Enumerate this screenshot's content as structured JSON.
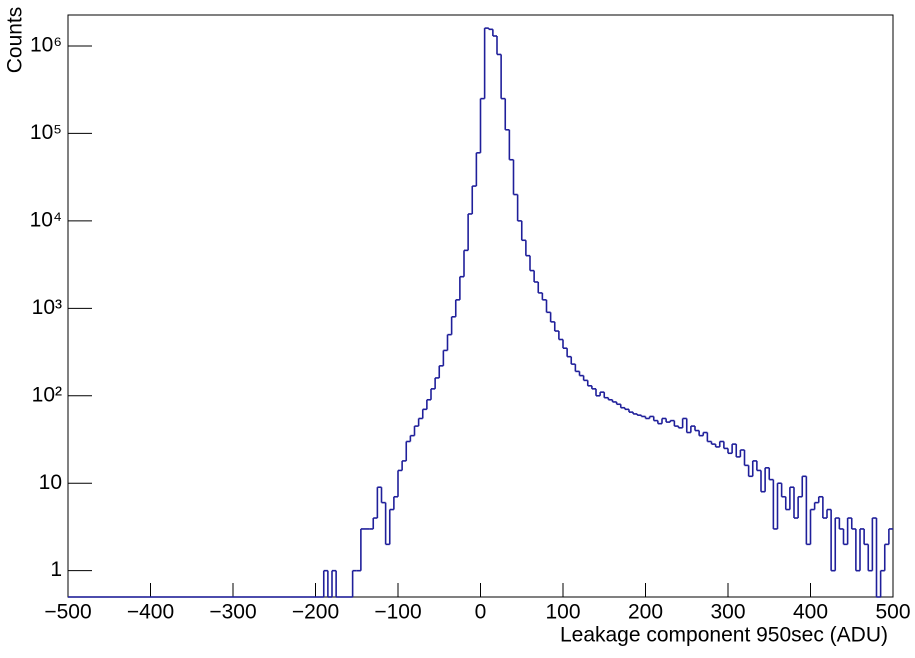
{
  "chart_data": {
    "type": "histogram",
    "x_label": "Leakage component 950sec (ADU)",
    "y_label": "Counts",
    "color": "#1f1f9a",
    "log_y": true,
    "bins": [
      -500,
      -495,
      -490,
      -485,
      -480,
      -475,
      -470,
      -465,
      -460,
      -455,
      -450,
      -445,
      -440,
      -435,
      -430,
      -425,
      -420,
      -415,
      -410,
      -405,
      -400,
      -395,
      -390,
      -385,
      -380,
      -375,
      -370,
      -365,
      -360,
      -355,
      -350,
      -345,
      -340,
      -335,
      -330,
      -325,
      -320,
      -315,
      -310,
      -305,
      -300,
      -295,
      -290,
      -285,
      -280,
      -275,
      -270,
      -265,
      -260,
      -255,
      -250,
      -245,
      -240,
      -235,
      -230,
      -225,
      -220,
      -215,
      -210,
      -205,
      -200,
      -195,
      -190,
      -185,
      -180,
      -175,
      -170,
      -165,
      -160,
      -155,
      -150,
      -145,
      -140,
      -135,
      -130,
      -125,
      -120,
      -115,
      -110,
      -105,
      -100,
      -95,
      -90,
      -85,
      -80,
      -75,
      -70,
      -65,
      -60,
      -55,
      -50,
      -45,
      -40,
      -35,
      -30,
      -25,
      -20,
      -15,
      -10,
      -5,
      0,
      5,
      10,
      15,
      20,
      25,
      30,
      35,
      40,
      45,
      50,
      55,
      60,
      65,
      70,
      75,
      80,
      85,
      90,
      95,
      100,
      105,
      110,
      115,
      120,
      125,
      130,
      135,
      140,
      145,
      150,
      155,
      160,
      165,
      170,
      175,
      180,
      185,
      190,
      195,
      200,
      205,
      210,
      215,
      220,
      225,
      230,
      235,
      240,
      245,
      250,
      255,
      260,
      265,
      270,
      275,
      280,
      285,
      290,
      295,
      300,
      305,
      310,
      315,
      320,
      325,
      330,
      335,
      340,
      345,
      350,
      355,
      360,
      365,
      370,
      375,
      380,
      385,
      390,
      395,
      400,
      405,
      410,
      415,
      420,
      425,
      430,
      435,
      440,
      445,
      450,
      455,
      460,
      465,
      470,
      475,
      480,
      485,
      490,
      495,
      500
    ],
    "values": [
      0,
      0,
      0,
      0,
      0,
      0,
      0,
      0,
      0,
      0,
      0,
      0,
      0,
      0,
      0,
      0,
      0,
      0,
      0,
      0,
      0,
      0,
      0,
      0,
      0,
      0,
      0,
      0,
      0,
      0,
      0,
      0,
      0,
      0,
      0,
      0,
      0,
      0,
      0,
      0,
      0,
      0,
      0,
      0,
      0,
      0,
      0,
      0,
      0,
      0,
      0,
      0,
      0,
      0,
      0,
      0,
      0,
      0,
      0,
      0,
      0,
      0,
      1,
      0,
      1,
      0,
      0,
      0,
      0,
      1,
      1,
      3,
      3,
      3,
      4,
      9,
      6,
      2,
      5,
      7,
      14,
      18,
      30,
      35,
      45,
      55,
      70,
      90,
      120,
      160,
      220,
      330,
      500,
      800,
      1250,
      2300,
      4600,
      12000,
      25000,
      60000,
      250000,
      1600000,
      1550000,
      1300000,
      800000,
      250000,
      110000,
      50000,
      20000,
      10000,
      6000,
      4000,
      2700,
      2000,
      1500,
      1250,
      900,
      700,
      550,
      440,
      350,
      280,
      230,
      190,
      170,
      150,
      130,
      120,
      100,
      110,
      95,
      90,
      85,
      80,
      73,
      70,
      65,
      62,
      60,
      58,
      55,
      58,
      52,
      48,
      55,
      50,
      52,
      45,
      43,
      55,
      38,
      45,
      40,
      35,
      38,
      30,
      28,
      26,
      30,
      25,
      22,
      28,
      20,
      24,
      16,
      12,
      18,
      14,
      8,
      15,
      11,
      3,
      10,
      7,
      5,
      9,
      4,
      7,
      12,
      2,
      5,
      6,
      7,
      4,
      5,
      1,
      4,
      3,
      2,
      4,
      3,
      1,
      3,
      2,
      1,
      4,
      0,
      1,
      2,
      3
    ],
    "xlim": [
      -500,
      500
    ],
    "ylim": [
      0.5,
      2260000
    ],
    "xticks": [
      {
        "value": -500,
        "label": "−500"
      },
      {
        "value": -400,
        "label": "−400"
      },
      {
        "value": -300,
        "label": "−300"
      },
      {
        "value": -200,
        "label": "−200"
      },
      {
        "value": -100,
        "label": "−100"
      },
      0,
      100,
      200,
      300,
      400,
      500
    ],
    "yticks": [
      1,
      10,
      {
        "value": 100,
        "label": "10²"
      },
      {
        "value": 1000,
        "label": "10³"
      },
      {
        "value": 10000,
        "label": "10⁴"
      },
      {
        "value": 100000,
        "label": "10⁵"
      },
      {
        "value": 1000000,
        "label": "10⁶"
      }
    ]
  }
}
